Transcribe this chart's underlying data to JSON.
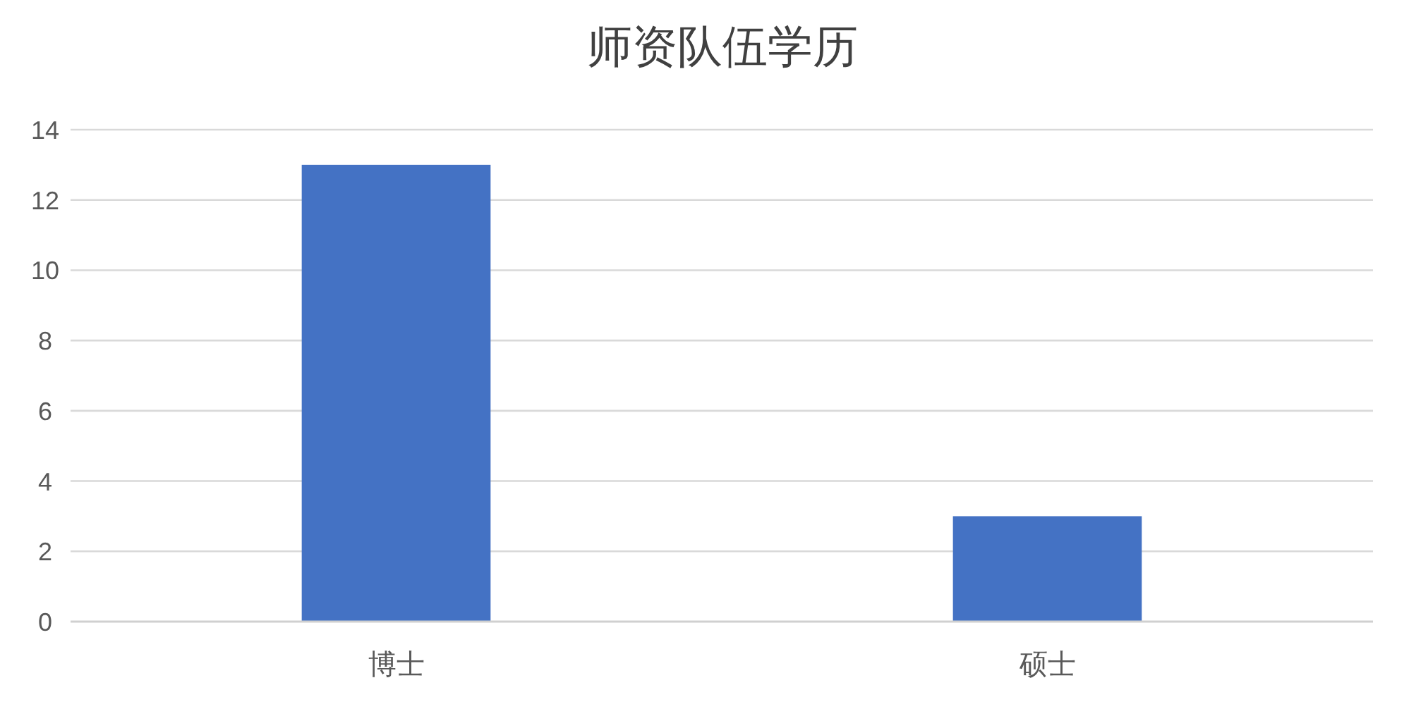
{
  "chart_data": {
    "type": "bar",
    "title": "师资队伍学历",
    "categories": [
      "博士",
      "硕士"
    ],
    "values": [
      13,
      3
    ],
    "color": "#4472c4",
    "ylim": [
      0,
      14
    ],
    "yticks": [
      0,
      2,
      4,
      6,
      8,
      10,
      12,
      14
    ],
    "grid": "y"
  }
}
